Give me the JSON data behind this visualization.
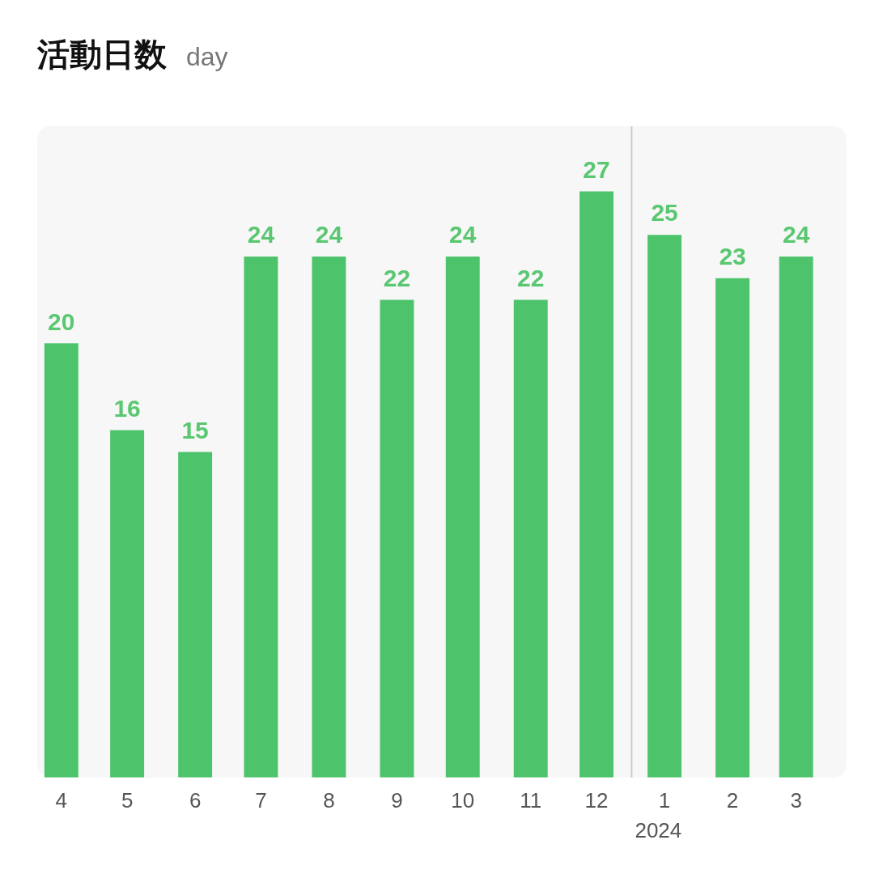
{
  "chart_data": {
    "type": "bar",
    "title": "活動日数",
    "subtitle": "day",
    "x": [
      "2023-04-16",
      "2023-05-16",
      "2023-06-16",
      "2023-07-16",
      "2023-08-16",
      "2023-09-16",
      "2023-10-16",
      "2023-11-16",
      "2023-12-16",
      "2024-01-16",
      "2024-02-16",
      "2024-03-16"
    ],
    "values": [
      20,
      16,
      15,
      24,
      24,
      22,
      24,
      22,
      27,
      25,
      23,
      24
    ],
    "color": "#4dc46c",
    "xlim": [
      "2023-04-05",
      "2024-04-08"
    ],
    "xticks": [
      {
        "value": "2023-04-16",
        "label": "4"
      },
      {
        "value": "2023-05-16",
        "label": "5"
      },
      {
        "value": "2023-06-16",
        "label": "6"
      },
      {
        "value": "2023-07-16",
        "label": "7"
      },
      {
        "value": "2023-08-16",
        "label": "8"
      },
      {
        "value": "2023-09-16",
        "label": "9"
      },
      {
        "value": "2023-10-16",
        "label": "10"
      },
      {
        "value": "2023-11-16",
        "label": "11"
      },
      {
        "value": "2023-12-16",
        "label": "12"
      },
      {
        "value": "2024-01-16",
        "label": "1"
      },
      {
        "value": "2024-02-16",
        "label": "2"
      },
      {
        "value": "2024-03-16",
        "label": "3"
      }
    ],
    "data_labels": true,
    "grid": false,
    "legend": false,
    "tick_labels": "x",
    "ref_lines": [
      {
        "axis": "x",
        "value": "2024-01-01",
        "label": "2024",
        "color": "#cccccc"
      }
    ]
  }
}
